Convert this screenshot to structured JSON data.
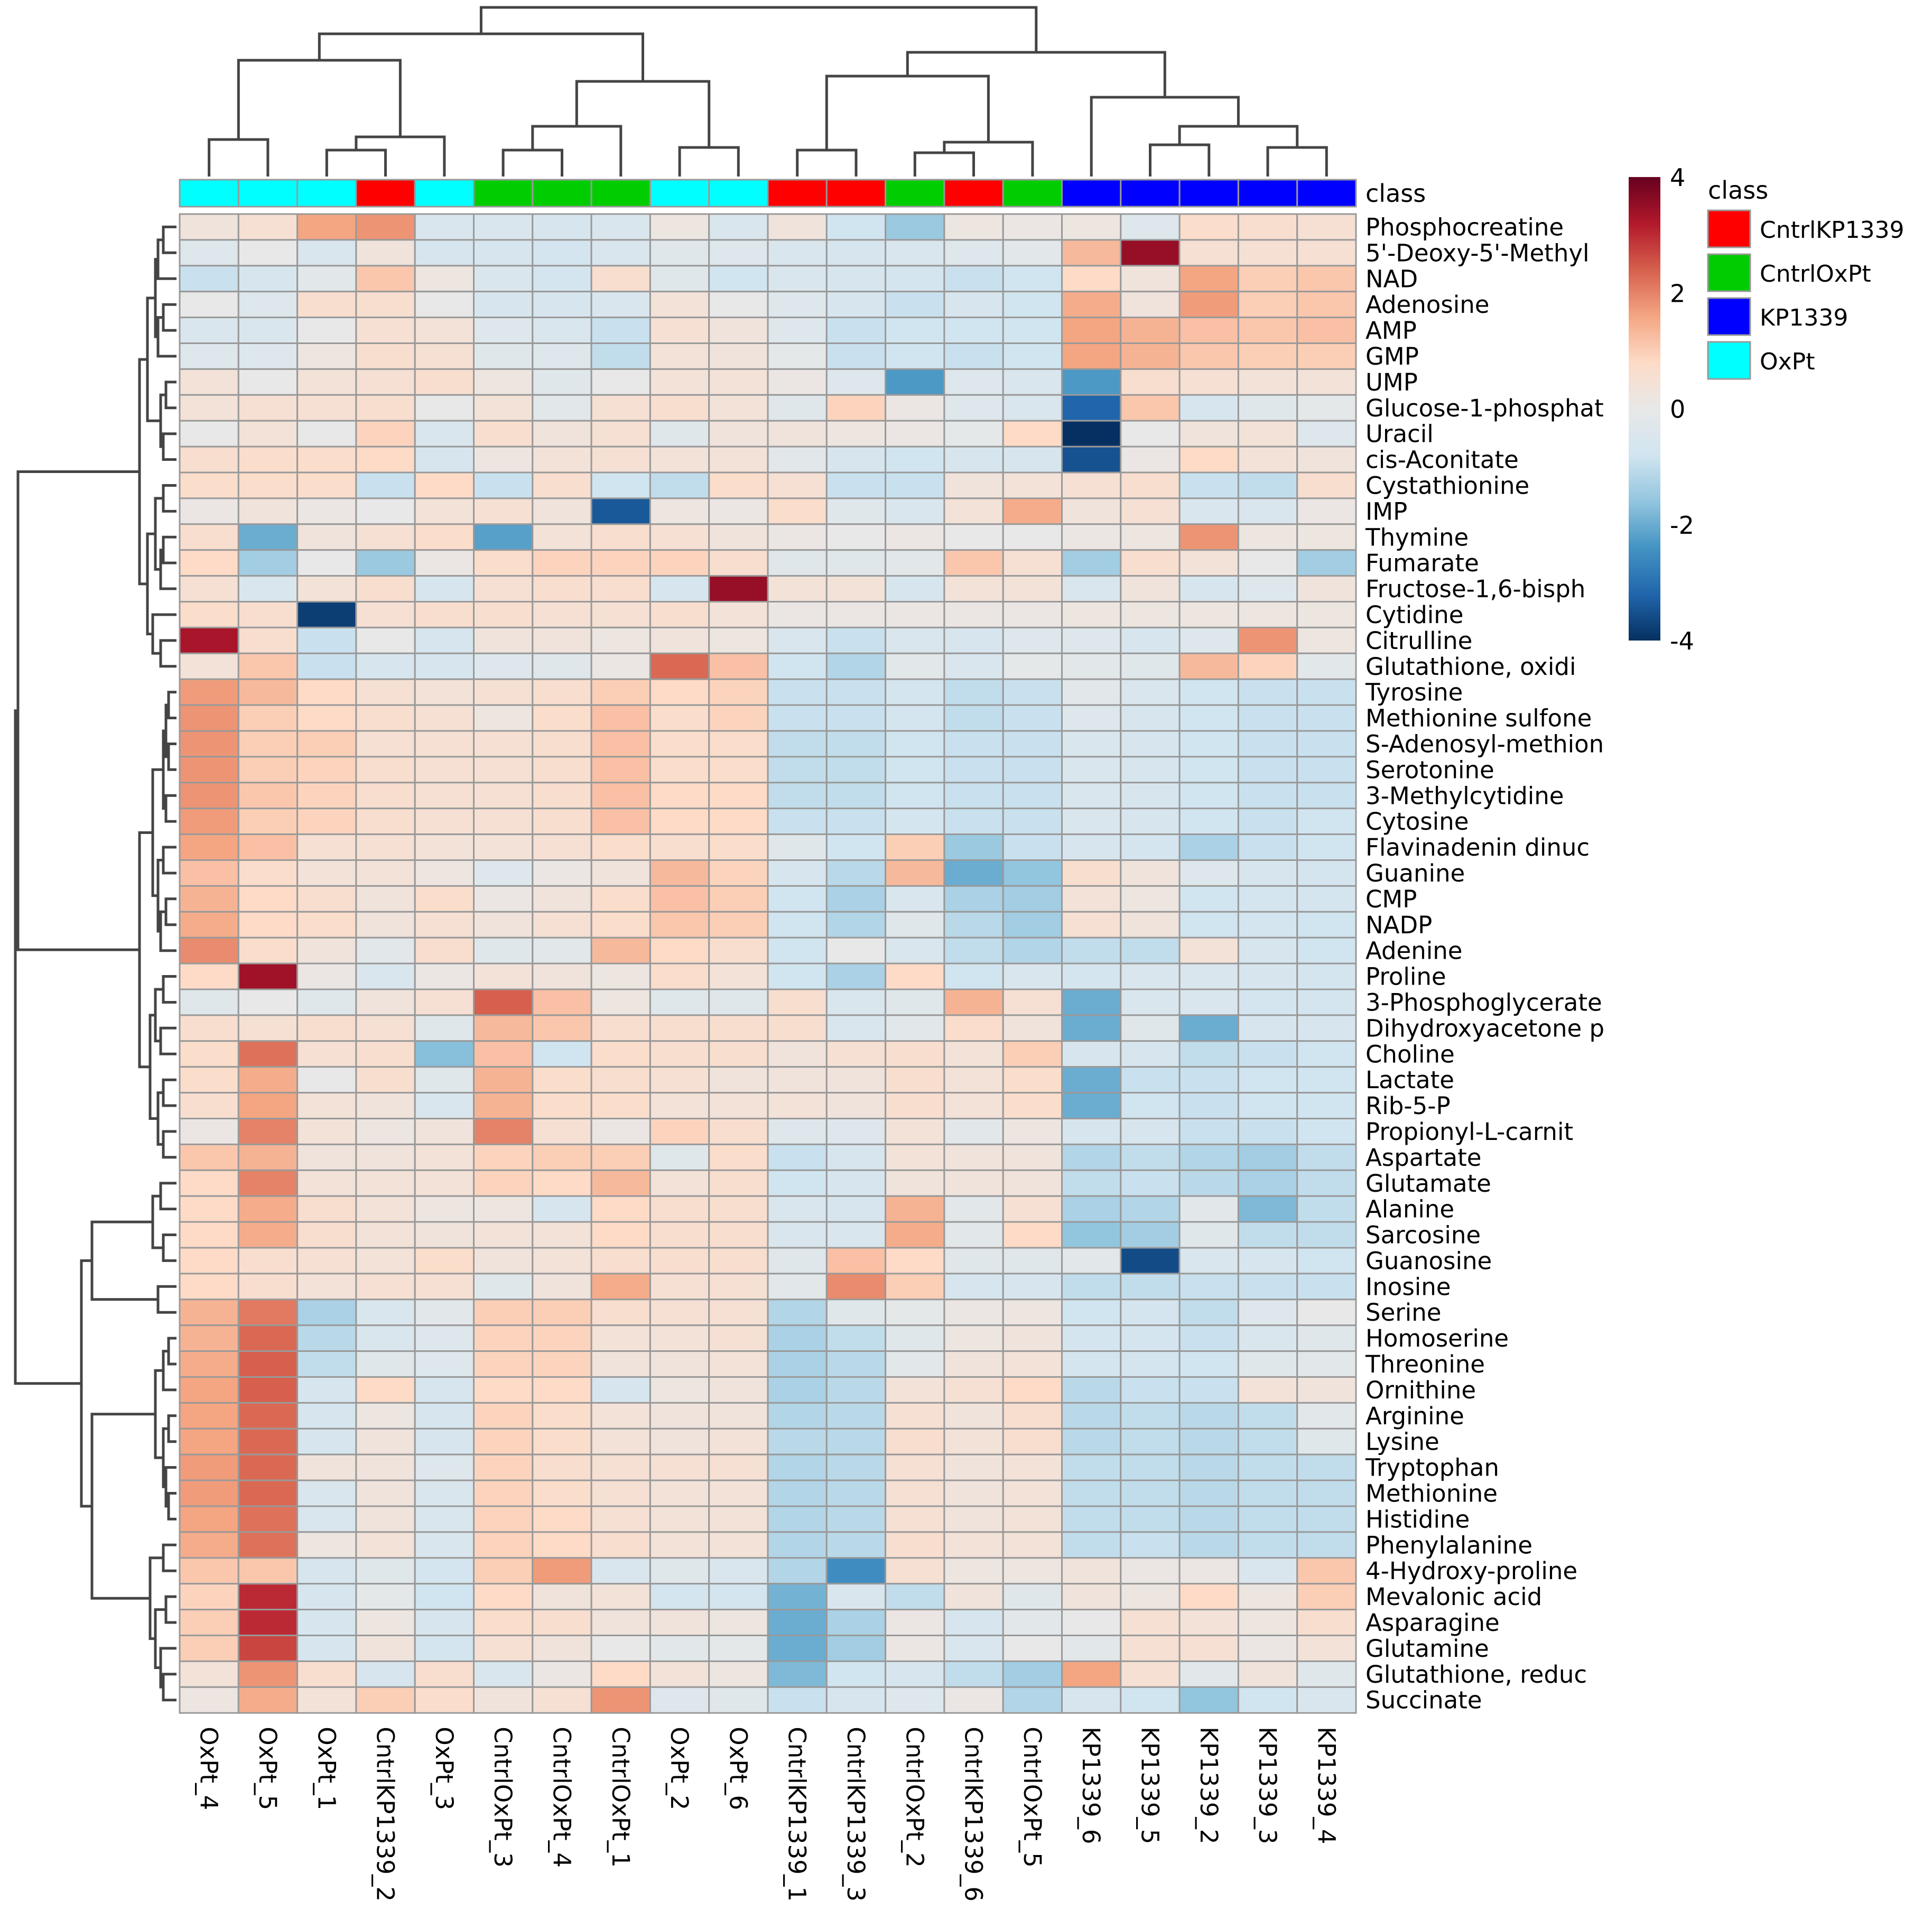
{
  "chart_data": {
    "type": "heatmap",
    "title": "",
    "class_label": "class",
    "columns": [
      "OxPt_4",
      "OxPt_5",
      "OxPt_1",
      "CntrlKP1339_2",
      "OxPt_3",
      "CntrlOxPt_3",
      "CntrlOxPt_4",
      "CntrlOxPt_1",
      "OxPt_2",
      "OxPt_6",
      "CntrlKP1339_1",
      "CntrlKP1339_3",
      "CntrlOxPt_2",
      "CntrlKP1339_6",
      "CntrlOxPt_5",
      "KP1339_6",
      "KP1339_5",
      "KP1339_2",
      "KP1339_3",
      "KP1339_4"
    ],
    "column_classes": [
      "OxPt",
      "OxPt",
      "OxPt",
      "CntrlKP1339",
      "OxPt",
      "CntrlOxPt",
      "CntrlOxPt",
      "CntrlOxPt",
      "OxPt",
      "OxPt",
      "CntrlKP1339",
      "CntrlKP1339",
      "CntrlOxPt",
      "CntrlKP1339",
      "CntrlOxPt",
      "KP1339",
      "KP1339",
      "KP1339",
      "KP1339",
      "KP1339"
    ],
    "rows": [
      "Phosphocreatine",
      "5'-Deoxy-5'-Methyl",
      "NAD",
      "Adenosine",
      "AMP",
      "GMP",
      "UMP",
      "Glucose-1-phosphat",
      "Uracil",
      "cis-Aconitate",
      "Cystathionine",
      "IMP",
      "Thymine",
      "Fumarate",
      "Fructose-1,6-bisph",
      "Cytidine",
      "Citrulline",
      "Glutathione, oxidi",
      "Tyrosine",
      "Methionine sulfone",
      "S-Adenosyl-methion",
      "Serotonine",
      "3-Methylcytidine",
      "Cytosine",
      "Flavinadenin dinuc",
      "Guanine",
      "CMP",
      "NADP",
      "Adenine",
      "Proline",
      "3-Phosphoglycerate",
      "Dihydroxyacetone p",
      "Choline",
      "Lactate",
      "Rib-5-P",
      "Propionyl-L-carnit",
      "Aspartate",
      "Glutamate",
      "Alanine",
      "Sarcosine",
      "Guanosine",
      "Inosine",
      "Serine",
      "Homoserine",
      "Threonine",
      "Ornithine",
      "Arginine",
      "Lysine",
      "Tryptophan",
      "Methionine",
      "Histidine",
      "Phenylalanine",
      "4-Hydroxy-proline",
      "Mevalonic acid",
      "Asparagine",
      "Glutamine",
      "Glutathione, reduc",
      "Succinate"
    ],
    "values": [
      [
        0.3,
        0.5,
        1.6,
        1.8,
        -0.5,
        -0.5,
        -0.6,
        -0.5,
        0.2,
        -0.5,
        0.3,
        -0.8,
        -1.5,
        0.2,
        0.1,
        0.2,
        -0.4,
        0.7,
        0.6,
        0.5
      ],
      [
        -0.4,
        0,
        -0.5,
        0.3,
        -0.6,
        -0.6,
        -0.7,
        -0.5,
        -0.3,
        -0.4,
        -0.5,
        -0.6,
        -0.5,
        -0.4,
        -0.2,
        1.3,
        3.5,
        0.5,
        0.5,
        0.5
      ],
      [
        -0.9,
        -0.6,
        -0.2,
        1.1,
        0.2,
        -0.5,
        -0.7,
        0.6,
        -0.3,
        -0.8,
        -0.5,
        -0.6,
        -0.7,
        -0.9,
        -0.8,
        0.8,
        0.3,
        1.6,
        1.0,
        1.1
      ],
      [
        0,
        -0.4,
        0.6,
        0.6,
        0,
        -0.6,
        -0.6,
        -0.5,
        0.4,
        0,
        -0.4,
        -0.6,
        -0.9,
        -0.6,
        -0.8,
        1.5,
        0.3,
        1.7,
        1.0,
        1.1
      ],
      [
        -0.5,
        -0.5,
        0,
        0.5,
        0.4,
        -0.4,
        -0.5,
        -0.9,
        0.5,
        0.3,
        -0.4,
        -0.9,
        -0.8,
        -0.8,
        -0.8,
        1.6,
        1.4,
        1.2,
        1.1,
        1.2
      ],
      [
        -0.4,
        -0.4,
        0.2,
        0.6,
        0.5,
        -0.3,
        -0.4,
        -1.0,
        0.4,
        0.3,
        -0.1,
        -0.9,
        -0.8,
        -0.9,
        -0.8,
        1.6,
        1.4,
        1.1,
        1.0,
        1.0
      ],
      [
        0.4,
        0,
        0.4,
        0.5,
        0.6,
        0.2,
        -0.3,
        0,
        0.4,
        0.4,
        0.1,
        -0.4,
        -2.3,
        -0.4,
        -0.5,
        -2.3,
        0.6,
        0.5,
        0.4,
        0.4
      ],
      [
        0.4,
        0.5,
        0.5,
        0.6,
        0,
        0.4,
        -0.2,
        0.5,
        0.6,
        0.4,
        -0.3,
        0.9,
        0.1,
        -0.4,
        -0.5,
        -3.2,
        1.1,
        -0.6,
        -0.3,
        -0.1
      ],
      [
        0,
        0.4,
        0,
        0.9,
        -0.5,
        0.6,
        0.3,
        0.5,
        -0.3,
        0.3,
        0.3,
        0.2,
        0.1,
        -0.1,
        0.8,
        -4.0,
        0,
        0.3,
        0.4,
        -0.4
      ],
      [
        0.6,
        0.7,
        0.7,
        0.8,
        -0.6,
        0.2,
        0.4,
        0.5,
        0.4,
        0.4,
        -0.2,
        -0.6,
        -0.8,
        -0.6,
        -0.6,
        -3.5,
        0.1,
        0.8,
        0.4,
        0.3
      ],
      [
        0.7,
        0.7,
        0.7,
        -0.9,
        0.8,
        -0.9,
        0.6,
        -0.8,
        -1.0,
        0.7,
        0.5,
        -0.9,
        -0.9,
        0.3,
        0.4,
        0.5,
        0.6,
        -0.9,
        -1.0,
        0.6
      ],
      [
        0.1,
        0.3,
        0.1,
        0,
        0.4,
        0.5,
        0.3,
        -3.4,
        0.2,
        0.1,
        0.7,
        -0.3,
        -0.5,
        0.4,
        1.5,
        0.3,
        0.5,
        -0.5,
        -0.5,
        0.1
      ],
      [
        0.6,
        -2.0,
        0.3,
        0.5,
        0.7,
        -2.2,
        0.4,
        0.6,
        0.5,
        0.3,
        0.1,
        0,
        0.1,
        0,
        0,
        0.1,
        0.2,
        1.8,
        0.2,
        0.2
      ],
      [
        0.8,
        -1.4,
        0,
        -1.5,
        0.1,
        0.7,
        0.9,
        0.9,
        0.9,
        0.6,
        -0.3,
        -0.3,
        -0.2,
        1.1,
        0.5,
        -1.4,
        0.6,
        0.4,
        0,
        -1.4
      ],
      [
        0.5,
        -0.5,
        0.4,
        0.6,
        -0.6,
        0.5,
        0.6,
        0.6,
        -0.6,
        3.5,
        0.4,
        0.4,
        -0.6,
        0.4,
        0.4,
        -0.5,
        0.3,
        -0.6,
        -0.4,
        0.3
      ],
      [
        0.7,
        0.6,
        -3.8,
        0.5,
        0.6,
        0.6,
        0.5,
        0.5,
        0.6,
        0.4,
        0.1,
        0.1,
        0.1,
        0.1,
        0.1,
        0.2,
        0.2,
        0.2,
        0.2,
        0.2
      ],
      [
        3.3,
        0.6,
        -0.9,
        0,
        -0.6,
        0.3,
        0.3,
        0.2,
        0.3,
        0.2,
        -0.5,
        -0.9,
        -0.5,
        -0.6,
        -0.4,
        -0.4,
        -0.6,
        -0.4,
        1.8,
        0.2
      ],
      [
        0.4,
        1.1,
        -0.9,
        -0.6,
        -0.6,
        -0.4,
        -0.3,
        0.1,
        2.3,
        1.2,
        -0.8,
        -1.2,
        -0.2,
        -0.5,
        -0.1,
        -0.2,
        -0.3,
        1.3,
        0.9,
        -0.2
      ],
      [
        1.7,
        1.3,
        0.8,
        0.5,
        0.4,
        0.5,
        0.6,
        1.0,
        0.8,
        0.9,
        -0.9,
        -0.9,
        -0.7,
        -1.0,
        -0.9,
        -0.2,
        -0.5,
        -0.8,
        -0.9,
        -0.9
      ],
      [
        1.8,
        1.0,
        0.8,
        0.6,
        0.5,
        0.2,
        0.7,
        1.2,
        0.7,
        0.9,
        -0.9,
        -0.9,
        -0.7,
        -1.0,
        -0.9,
        -0.4,
        -0.6,
        -0.8,
        -0.9,
        -0.9
      ],
      [
        1.8,
        1.0,
        1.0,
        0.5,
        0.5,
        0.5,
        0.6,
        1.2,
        0.7,
        0.7,
        -1.0,
        -1.0,
        -0.8,
        -0.9,
        -0.9,
        -0.5,
        -0.6,
        -0.8,
        -0.9,
        -0.9
      ],
      [
        1.8,
        1.0,
        0.9,
        0.6,
        0.5,
        0.5,
        0.6,
        1.2,
        0.7,
        0.7,
        -1.0,
        -1.0,
        -0.8,
        -0.9,
        -0.9,
        -0.5,
        -0.6,
        -0.8,
        -0.9,
        -0.9
      ],
      [
        1.8,
        1.1,
        0.9,
        0.6,
        0.5,
        0.5,
        0.6,
        1.2,
        0.8,
        0.8,
        -1.0,
        -1.0,
        -0.8,
        -0.9,
        -0.9,
        -0.5,
        -0.6,
        -0.8,
        -0.9,
        -0.9
      ],
      [
        1.7,
        1.0,
        0.9,
        0.6,
        0.5,
        0.5,
        0.6,
        1.2,
        0.8,
        0.8,
        -0.9,
        -0.9,
        -0.7,
        -0.9,
        -0.9,
        -0.5,
        -0.6,
        -0.8,
        -0.9,
        -0.8
      ],
      [
        1.6,
        1.2,
        0.5,
        0.5,
        0.4,
        0.4,
        0.5,
        0.7,
        0.6,
        0.7,
        -0.3,
        -0.8,
        1.0,
        -1.5,
        -0.9,
        -0.6,
        -0.7,
        -1.3,
        -0.9,
        -0.8
      ],
      [
        1.2,
        0.7,
        0.4,
        0.4,
        0.2,
        -0.4,
        0.1,
        0.3,
        1.3,
        0.9,
        -0.6,
        -1.1,
        1.3,
        -2.0,
        -1.6,
        0.6,
        0.3,
        -0.4,
        -0.6,
        -0.7
      ],
      [
        1.4,
        0.8,
        0.6,
        0.3,
        0.7,
        0.1,
        0.3,
        0.7,
        1.2,
        1.0,
        -0.8,
        -1.3,
        -0.5,
        -1.3,
        -1.4,
        0.4,
        0.2,
        -0.8,
        -0.7,
        -0.7
      ],
      [
        1.5,
        0.8,
        0.7,
        0.3,
        0.5,
        0.3,
        0.5,
        0.7,
        1.1,
        1.0,
        -0.8,
        -1.2,
        -0.3,
        -1.1,
        -1.4,
        0.5,
        0.3,
        -0.8,
        -0.7,
        -0.8
      ],
      [
        1.9,
        0.7,
        0.3,
        -0.2,
        0.6,
        -0.3,
        -0.2,
        1.3,
        0.8,
        0.6,
        -0.8,
        0,
        -0.5,
        -1.0,
        -1.2,
        -1.0,
        -1.0,
        0.4,
        -0.6,
        -0.8
      ],
      [
        0.8,
        3.4,
        0.1,
        -0.5,
        0.1,
        0.4,
        0.3,
        0.2,
        0.7,
        0.4,
        -0.8,
        -1.3,
        0.8,
        -0.8,
        -0.5,
        -0.7,
        -0.5,
        -0.5,
        -0.6,
        -0.7
      ],
      [
        -0.3,
        0,
        -0.3,
        0.3,
        0.5,
        2.4,
        1.2,
        0.2,
        -0.3,
        -0.3,
        0.6,
        -0.5,
        -0.3,
        1.4,
        0.5,
        -2.0,
        -0.5,
        -0.5,
        -0.7,
        -0.7
      ],
      [
        0.6,
        0.5,
        0.6,
        0.5,
        -0.3,
        1.3,
        1.1,
        0.6,
        0.6,
        0.6,
        0.6,
        -0.5,
        -0.2,
        0.7,
        0.3,
        -2.0,
        -0.3,
        -2.0,
        -0.6,
        -0.6
      ],
      [
        0.7,
        2.2,
        0.5,
        0.6,
        -1.7,
        1.2,
        -0.8,
        0.7,
        0.6,
        0.6,
        0.3,
        0.5,
        0.6,
        0.4,
        1.0,
        -0.6,
        -0.6,
        -1.0,
        -0.9,
        -0.8
      ],
      [
        0.7,
        1.5,
        0,
        0.6,
        -0.3,
        1.4,
        0.7,
        0.6,
        0.5,
        0.3,
        0.3,
        0.3,
        0.6,
        0.4,
        0.7,
        -2.0,
        -0.9,
        -0.9,
        -0.8,
        -0.8
      ],
      [
        0.6,
        1.6,
        0.4,
        0.3,
        -0.5,
        1.4,
        0.7,
        0.7,
        0.4,
        0.4,
        0.4,
        0.3,
        0.6,
        0.4,
        0.7,
        -2.0,
        -0.8,
        -0.9,
        -0.8,
        -0.8
      ],
      [
        0.1,
        2.0,
        0.4,
        0.2,
        0.3,
        2.0,
        0.5,
        0.1,
        0.9,
        0.6,
        -0.4,
        -0.4,
        0.4,
        -0.2,
        0.2,
        -0.6,
        -0.6,
        -0.9,
        -0.9,
        -0.8
      ],
      [
        1.1,
        1.4,
        0.3,
        0.3,
        0.4,
        0.9,
        1.0,
        1.0,
        -0.3,
        0.7,
        -0.9,
        -0.6,
        0.4,
        0.3,
        0.3,
        -1.2,
        -1.0,
        -1.2,
        -1.4,
        -1.0
      ],
      [
        0.8,
        2.0,
        0.4,
        0.4,
        0.4,
        0.9,
        0.8,
        1.3,
        0.4,
        0.6,
        -0.8,
        -0.6,
        0.3,
        0.3,
        0.3,
        -1.0,
        -0.9,
        -1.1,
        -1.3,
        -1.0
      ],
      [
        0.8,
        1.5,
        0.6,
        0.4,
        0.2,
        0.2,
        -0.6,
        0.8,
        0.6,
        0.6,
        -0.5,
        -0.6,
        1.4,
        -0.2,
        0.5,
        -1.3,
        -1.2,
        -0.2,
        -1.8,
        -1.0
      ],
      [
        0.8,
        1.5,
        0.6,
        0.4,
        0.3,
        0.4,
        0.4,
        0.8,
        0.6,
        0.6,
        -0.5,
        -0.5,
        1.5,
        -0.2,
        0.8,
        -1.6,
        -1.4,
        -0.3,
        -1.0,
        -1.0
      ],
      [
        0.8,
        0.6,
        0.5,
        0.4,
        0.7,
        0.3,
        0.4,
        0.6,
        0.6,
        0.6,
        -0.3,
        1.2,
        0.8,
        -0.3,
        -0.3,
        -0.2,
        -3.6,
        -0.5,
        -0.6,
        -0.8
      ],
      [
        0.8,
        0.6,
        0.4,
        0.5,
        0.5,
        -0.3,
        0.3,
        1.5,
        0.5,
        0.5,
        -0.2,
        1.9,
        1.0,
        -0.6,
        -0.6,
        -1.0,
        -1.0,
        -0.9,
        -0.9,
        -0.9
      ],
      [
        1.4,
        2.1,
        -1.3,
        -0.5,
        -0.2,
        1.0,
        1.0,
        0.6,
        0.5,
        0.5,
        -1.2,
        -0.3,
        -0.1,
        0.1,
        0.2,
        -0.8,
        -0.7,
        -1.0,
        -0.4,
        0
      ],
      [
        1.4,
        2.3,
        -1.1,
        -0.5,
        -0.4,
        0.9,
        0.9,
        0.4,
        0.4,
        0.5,
        -1.3,
        -1.0,
        -0.3,
        0.2,
        0.3,
        -0.7,
        -0.7,
        -0.9,
        -0.5,
        -0.3
      ],
      [
        1.5,
        2.4,
        -1.0,
        -0.3,
        -0.4,
        0.9,
        0.9,
        0.3,
        0.3,
        0.4,
        -1.3,
        -1.1,
        -0.2,
        0.3,
        0.4,
        -0.7,
        -0.7,
        -0.8,
        -0.3,
        -0.2
      ],
      [
        1.6,
        2.4,
        -0.6,
        0.8,
        -0.6,
        0.8,
        0.8,
        -0.6,
        0.2,
        0.3,
        -1.3,
        -1.1,
        0.4,
        0.5,
        0.8,
        -1.1,
        -0.9,
        -0.9,
        0.4,
        0.3
      ],
      [
        1.6,
        2.3,
        -0.6,
        0.2,
        -0.6,
        0.9,
        0.7,
        0.4,
        0.3,
        0.3,
        -1.2,
        -1.1,
        0.5,
        0.3,
        0.6,
        -1.1,
        -1.0,
        -1.1,
        -1.0,
        -0.2
      ],
      [
        1.6,
        2.3,
        -0.6,
        0.3,
        -0.6,
        0.9,
        0.7,
        0.4,
        0.3,
        0.4,
        -1.1,
        -1.1,
        0.6,
        0.4,
        0.6,
        -1.1,
        -1.0,
        -1.1,
        -1.0,
        -0.3
      ],
      [
        1.7,
        2.3,
        0.3,
        0.3,
        -0.4,
        0.9,
        0.6,
        0.5,
        0.5,
        0.5,
        -1.2,
        -1.1,
        0.5,
        0.3,
        0.4,
        -1.0,
        -1.0,
        -1.1,
        -1.0,
        -1.0
      ],
      [
        1.7,
        2.3,
        -0.5,
        0.3,
        -0.5,
        0.9,
        0.7,
        0.5,
        0.4,
        0.4,
        -1.2,
        -1.1,
        0.5,
        0.3,
        0.4,
        -1.0,
        -1.0,
        -1.1,
        -1.0,
        -1.0
      ],
      [
        1.6,
        2.2,
        -0.5,
        0.3,
        -0.5,
        0.9,
        0.8,
        0.5,
        0.4,
        0.4,
        -1.2,
        -1.1,
        0.5,
        0.3,
        0.4,
        -1.0,
        -1.0,
        -1.1,
        -1.0,
        -1.0
      ],
      [
        1.5,
        2.2,
        0.2,
        0.4,
        -0.5,
        0.9,
        0.8,
        0.6,
        0.4,
        0.4,
        -1.2,
        -1.1,
        0.6,
        0.4,
        0.4,
        -1.0,
        -0.9,
        -1.1,
        -1.0,
        -1.0
      ],
      [
        1.1,
        1.1,
        -0.6,
        -0.3,
        -0.7,
        1.0,
        1.7,
        -0.5,
        -0.3,
        -0.5,
        -1.2,
        -2.5,
        0.5,
        0.2,
        0.2,
        0.3,
        0.1,
        0.1,
        -0.5,
        1.1
      ],
      [
        0.9,
        3.0,
        -0.6,
        -0.1,
        -0.8,
        0.8,
        0.3,
        0.4,
        -0.7,
        -0.7,
        -1.9,
        -0.5,
        -1.0,
        0.3,
        -0.3,
        0.3,
        0.2,
        0.8,
        0.2,
        1.0
      ],
      [
        1.0,
        3.0,
        -0.6,
        0.2,
        -0.6,
        0.7,
        0.6,
        0.3,
        0.3,
        0.2,
        -2.0,
        -1.3,
        0.1,
        -0.6,
        -0.2,
        0,
        0.5,
        0.4,
        0.2,
        0.6
      ],
      [
        1.0,
        2.7,
        -0.6,
        0.3,
        -0.7,
        0.5,
        0.3,
        0,
        -0.2,
        -0.1,
        -2.0,
        -1.4,
        0.1,
        -0.5,
        0,
        -0.2,
        0.5,
        0.5,
        0.1,
        0.4
      ],
      [
        0.4,
        1.8,
        0.6,
        -0.6,
        0.6,
        -0.5,
        0.1,
        0.8,
        0.4,
        0.2,
        -1.8,
        -0.8,
        -0.6,
        -1.0,
        -1.4,
        1.6,
        0.5,
        -0.2,
        0.3,
        -0.3
      ],
      [
        0.2,
        1.5,
        0.4,
        1.0,
        0.7,
        0.3,
        0.5,
        1.8,
        -0.4,
        -0.3,
        -0.9,
        -0.6,
        -0.4,
        0.1,
        -1.2,
        -0.6,
        -0.8,
        -1.6,
        -0.8,
        -0.5
      ]
    ],
    "color_scale": {
      "min": -4,
      "max": 4,
      "ticks": [
        "4",
        "2",
        "0",
        "-2",
        "-4"
      ],
      "stops": [
        "#053061",
        "#2166ac",
        "#4393c3",
        "#92c5de",
        "#d1e5f0",
        "#e8e8e8",
        "#fddbc7",
        "#f4a582",
        "#d6604d",
        "#b2182b",
        "#67001f"
      ]
    },
    "legend": {
      "title": "class",
      "entries": [
        {
          "label": "CntrlKP1339",
          "color": "#ff0000"
        },
        {
          "label": "CntrlOxPt",
          "color": "#00cd00"
        },
        {
          "label": "KP1339",
          "color": "#0000ff"
        },
        {
          "label": "OxPt",
          "color": "#00ffff"
        }
      ]
    }
  }
}
